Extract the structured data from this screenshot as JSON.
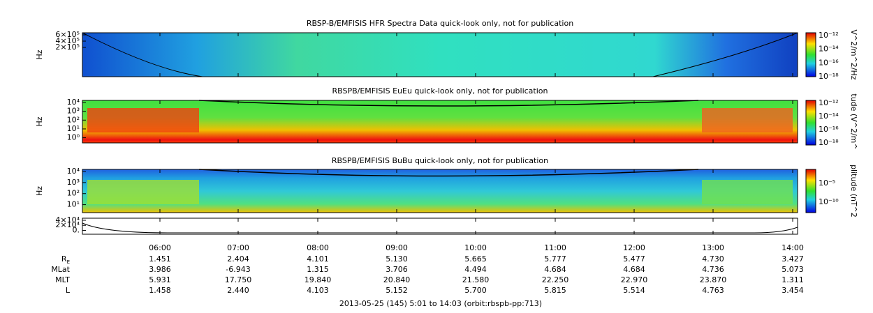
{
  "panels": [
    {
      "title": "RBSP-B/EMFISIS  HFR Spectra Data quick-look only, not for publication",
      "ylabel": "Hz",
      "yticks": [
        "6×10⁵",
        "4×10⁵",
        "2×10⁵"
      ],
      "colorbar_label": "V^2/m^2/Hz",
      "colorbar_ticks": [
        "10⁻¹²",
        "10⁻¹⁴",
        "10⁻¹⁶",
        "10⁻¹⁸"
      ]
    },
    {
      "title": "RBSPB/EMFISIS  EuEu quick-look only, not for publication",
      "ylabel": "Hz",
      "yticks": [
        "10⁴",
        "10³",
        "10²",
        "10¹",
        "10⁰"
      ],
      "colorbar_label": "tude (V^2/m^",
      "colorbar_ticks": [
        "10⁻¹²",
        "10⁻¹⁴",
        "10⁻¹⁶",
        "10⁻¹⁸"
      ]
    },
    {
      "title": "RBSPB/EMFISIS  BuBu quick-look only, not for publication",
      "ylabel": "Hz",
      "yticks": [
        "10⁴",
        "10³",
        "10²",
        "10¹"
      ],
      "colorbar_label": "plitude (nT^2",
      "colorbar_ticks": [
        "10⁻⁵",
        "10⁻¹⁰"
      ]
    },
    {
      "yticks": [
        "4×10⁴",
        "2×10⁴",
        "0."
      ]
    }
  ],
  "xticks": [
    "06:00",
    "07:00",
    "08:00",
    "09:00",
    "10:00",
    "11:00",
    "12:00",
    "13:00",
    "14:00"
  ],
  "ephemeris": [
    {
      "label": "R",
      "label_sub": "E",
      "values": [
        "1.451",
        "2.404",
        "4.101",
        "5.130",
        "5.665",
        "5.777",
        "5.477",
        "4.730",
        "3.427"
      ]
    },
    {
      "label": "MLat",
      "values": [
        "3.986",
        "-6.943",
        "1.315",
        "3.706",
        "4.494",
        "4.684",
        "4.684",
        "4.736",
        "5.073"
      ]
    },
    {
      "label": "MLT",
      "values": [
        "5.931",
        "17.750",
        "19.840",
        "20.840",
        "21.580",
        "22.250",
        "22.970",
        "23.870",
        "1.311"
      ]
    },
    {
      "label": "L",
      "values": [
        "1.458",
        "2.440",
        "4.103",
        "5.152",
        "5.700",
        "5.815",
        "5.514",
        "4.763",
        "3.454"
      ]
    }
  ],
  "footer": "2013-05-25 (145) 5:01 to 14:03 (orbit:rbspb-pp:713)"
}
